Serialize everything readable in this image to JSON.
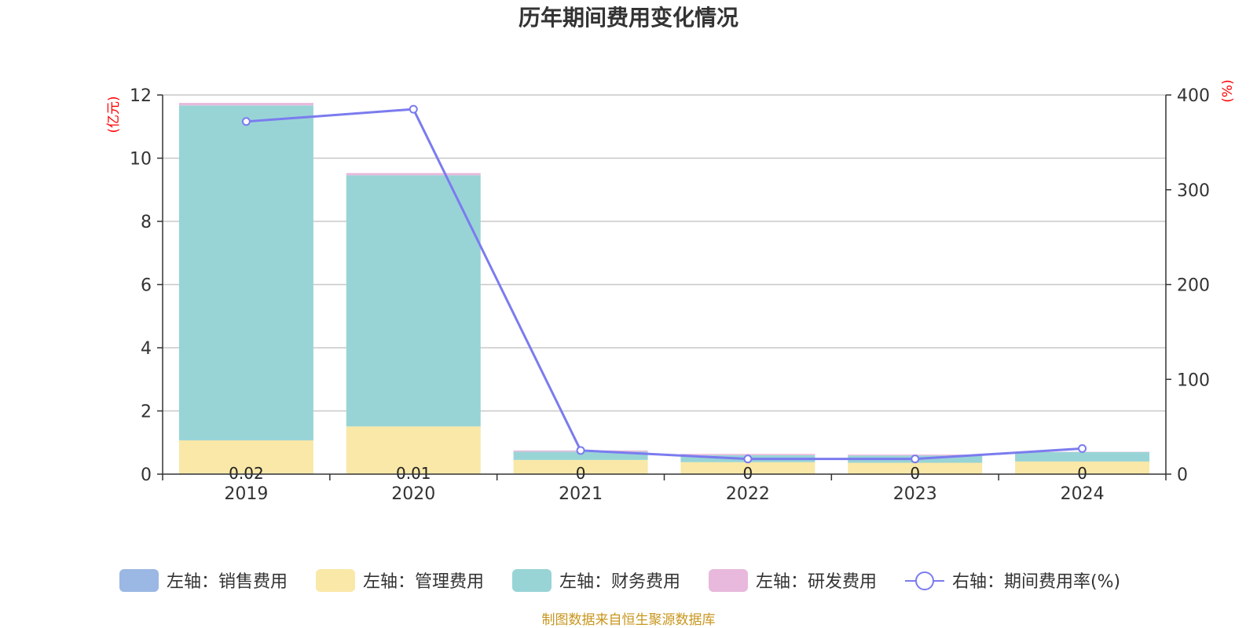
{
  "chart_data": {
    "type": "bar",
    "stacked": true,
    "title": "历年期间费用变化情况",
    "categories": [
      "2019",
      "2020",
      "2021",
      "2022",
      "2023",
      "2024"
    ],
    "y_left": {
      "unit": "(亿元)",
      "ylim": [
        0,
        12
      ],
      "ticks": [
        "0",
        "2",
        "4",
        "6",
        "8",
        "10",
        "12"
      ]
    },
    "y_right": {
      "unit": "(%)",
      "ylim": [
        0,
        400
      ],
      "ticks": [
        "0",
        "100",
        "200",
        "300",
        "400"
      ]
    },
    "series": [
      {
        "name": "左轴：销售费用",
        "color": "#9bb7e3",
        "values": [
          0.02,
          0.01,
          0,
          0,
          0,
          0
        ]
      },
      {
        "name": "左轴：管理费用",
        "color": "#f9e8a7",
        "values": [
          1.05,
          1.5,
          0.45,
          0.38,
          0.36,
          0.4
        ]
      },
      {
        "name": "左轴：财务费用",
        "color": "#98d4d6",
        "values": [
          10.6,
          7.95,
          0.26,
          0.22,
          0.23,
          0.3
        ]
      },
      {
        "name": "左轴：研发费用",
        "color": "#e8b9dc",
        "values": [
          0.08,
          0.07,
          0.04,
          0.04,
          0.03,
          0.01
        ]
      }
    ],
    "line": {
      "name": "右轴：期间费用率(%)",
      "color": "#7b7bef",
      "values": [
        372,
        385,
        25,
        16,
        16,
        27
      ]
    },
    "data_labels": [
      "0.02",
      "0.01",
      "0",
      "0",
      "0",
      "0"
    ],
    "source": "制图数据来自恒生聚源数据库"
  }
}
